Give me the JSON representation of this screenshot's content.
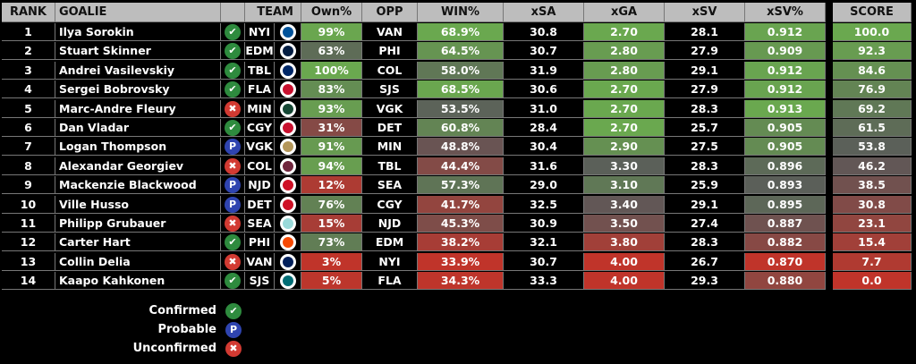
{
  "headers": {
    "rank": "RANK",
    "goalie": "GOALIE",
    "team": "TEAM",
    "own": "Own%",
    "opp": "OPP",
    "win": "WIN%",
    "xsa": "xSA",
    "xga": "xGA",
    "xsv": "xSV",
    "xsvp": "xSV%",
    "score": "SCORE"
  },
  "status_icons": {
    "confirmed": {
      "glyph": "✔",
      "color": "#2e8b3e"
    },
    "probable": {
      "glyph": "P",
      "color": "#2f44b0"
    },
    "unconfirmed": {
      "glyph": "✖",
      "color": "#d23a32"
    }
  },
  "heat_colors": {
    "low": "#c0342a",
    "mid": "#5a5a5a",
    "high": "#6aa84f"
  },
  "rows": [
    {
      "rank": "1",
      "goalie": "Ilya Sorokin",
      "status": "confirmed",
      "team": "NYI",
      "team_color": "#00539b",
      "own": "99%",
      "opp": "VAN",
      "win": "68.9%",
      "xsa": "30.8",
      "xga": "2.70",
      "xsv": "28.1",
      "xsvp": "0.912",
      "score": "100.0"
    },
    {
      "rank": "2",
      "goalie": "Stuart Skinner",
      "status": "confirmed",
      "team": "EDM",
      "team_color": "#041e42",
      "own": "63%",
      "opp": "PHI",
      "win": "64.5%",
      "xsa": "30.7",
      "xga": "2.80",
      "xsv": "27.9",
      "xsvp": "0.909",
      "score": "92.3"
    },
    {
      "rank": "3",
      "goalie": "Andrei Vasilevskiy",
      "status": "confirmed",
      "team": "TBL",
      "team_color": "#002868",
      "own": "100%",
      "opp": "COL",
      "win": "58.0%",
      "xsa": "31.9",
      "xga": "2.80",
      "xsv": "29.1",
      "xsvp": "0.912",
      "score": "84.6"
    },
    {
      "rank": "4",
      "goalie": "Sergei Bobrovsky",
      "status": "confirmed",
      "team": "FLA",
      "team_color": "#c8102e",
      "own": "83%",
      "opp": "SJS",
      "win": "68.5%",
      "xsa": "30.6",
      "xga": "2.70",
      "xsv": "27.9",
      "xsvp": "0.912",
      "score": "76.9"
    },
    {
      "rank": "5",
      "goalie": "Marc-Andre Fleury",
      "status": "unconfirmed",
      "team": "MIN",
      "team_color": "#154734",
      "own": "93%",
      "opp": "VGK",
      "win": "53.5%",
      "xsa": "31.0",
      "xga": "2.70",
      "xsv": "28.3",
      "xsvp": "0.913",
      "score": "69.2"
    },
    {
      "rank": "6",
      "goalie": "Dan Vladar",
      "status": "confirmed",
      "team": "CGY",
      "team_color": "#c8102e",
      "own": "31%",
      "opp": "DET",
      "win": "60.8%",
      "xsa": "28.4",
      "xga": "2.70",
      "xsv": "25.7",
      "xsvp": "0.905",
      "score": "61.5"
    },
    {
      "rank": "7",
      "goalie": "Logan Thompson",
      "status": "probable",
      "team": "VGK",
      "team_color": "#b4975a",
      "own": "91%",
      "opp": "MIN",
      "win": "48.8%",
      "xsa": "30.4",
      "xga": "2.90",
      "xsv": "27.5",
      "xsvp": "0.905",
      "score": "53.8"
    },
    {
      "rank": "8",
      "goalie": "Alexandar Georgiev",
      "status": "unconfirmed",
      "team": "COL",
      "team_color": "#6f263d",
      "own": "94%",
      "opp": "TBL",
      "win": "44.4%",
      "xsa": "31.6",
      "xga": "3.30",
      "xsv": "28.3",
      "xsvp": "0.896",
      "score": "46.2"
    },
    {
      "rank": "9",
      "goalie": "Mackenzie Blackwood",
      "status": "probable",
      "team": "NJD",
      "team_color": "#ce1126",
      "own": "12%",
      "opp": "SEA",
      "win": "57.3%",
      "xsa": "29.0",
      "xga": "3.10",
      "xsv": "25.9",
      "xsvp": "0.893",
      "score": "38.5"
    },
    {
      "rank": "10",
      "goalie": "Ville Husso",
      "status": "probable",
      "team": "DET",
      "team_color": "#ce1126",
      "own": "76%",
      "opp": "CGY",
      "win": "41.7%",
      "xsa": "32.5",
      "xga": "3.40",
      "xsv": "29.1",
      "xsvp": "0.895",
      "score": "30.8"
    },
    {
      "rank": "11",
      "goalie": "Philipp Grubauer",
      "status": "unconfirmed",
      "team": "SEA",
      "team_color": "#99d9d9",
      "own": "15%",
      "opp": "NJD",
      "win": "45.3%",
      "xsa": "30.9",
      "xga": "3.50",
      "xsv": "27.4",
      "xsvp": "0.887",
      "score": "23.1"
    },
    {
      "rank": "12",
      "goalie": "Carter Hart",
      "status": "confirmed",
      "team": "PHI",
      "team_color": "#f74902",
      "own": "73%",
      "opp": "EDM",
      "win": "38.2%",
      "xsa": "32.1",
      "xga": "3.80",
      "xsv": "28.3",
      "xsvp": "0.882",
      "score": "15.4"
    },
    {
      "rank": "13",
      "goalie": "Collin Delia",
      "status": "unconfirmed",
      "team": "VAN",
      "team_color": "#00205b",
      "own": "3%",
      "opp": "NYI",
      "win": "33.9%",
      "xsa": "30.7",
      "xga": "4.00",
      "xsv": "26.7",
      "xsvp": "0.870",
      "score": "7.7"
    },
    {
      "rank": "14",
      "goalie": "Kaapo Kahkonen",
      "status": "confirmed",
      "team": "SJS",
      "team_color": "#006d75",
      "own": "5%",
      "opp": "FLA",
      "win": "34.3%",
      "xsa": "33.3",
      "xga": "4.00",
      "xsv": "29.3",
      "xsvp": "0.880",
      "score": "0.0"
    }
  ],
  "legend": [
    {
      "label": "Confirmed",
      "status": "confirmed"
    },
    {
      "label": "Probable",
      "status": "probable"
    },
    {
      "label": "Unconfirmed",
      "status": "unconfirmed"
    }
  ]
}
